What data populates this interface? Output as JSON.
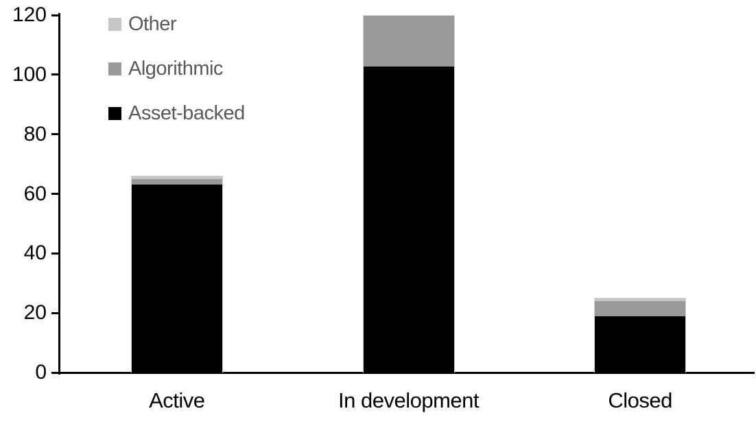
{
  "chart_data": {
    "type": "bar",
    "stacked": true,
    "title": "",
    "xlabel": "",
    "ylabel": "",
    "categories": [
      "Active",
      "In development",
      "Closed"
    ],
    "series": [
      {
        "name": "Asset-backed",
        "color": "#000000",
        "values": [
          63,
          103,
          19
        ]
      },
      {
        "name": "Algorithmic",
        "color": "#999999",
        "values": [
          2,
          17,
          5
        ]
      },
      {
        "name": "Other",
        "color": "#c6c6c6",
        "values": [
          1,
          0,
          1
        ]
      }
    ],
    "stack_order_bottom_to_top": [
      "Asset-backed",
      "Algorithmic",
      "Other"
    ],
    "category_totals": [
      66,
      120,
      25
    ],
    "ylim": [
      0,
      120
    ],
    "yticks": [
      "0",
      "20",
      "40",
      "60",
      "80",
      "100",
      "120"
    ],
    "grid": false,
    "legend": {
      "position": "top-left",
      "items_top_to_bottom": [
        "Other",
        "Algorithmic",
        "Asset-backed"
      ],
      "text_color": "#595959"
    },
    "colors": {
      "axis": "#000000",
      "bar_border": "#d2d2d2",
      "background": "#ffffff",
      "tick_label": "#000000"
    }
  }
}
